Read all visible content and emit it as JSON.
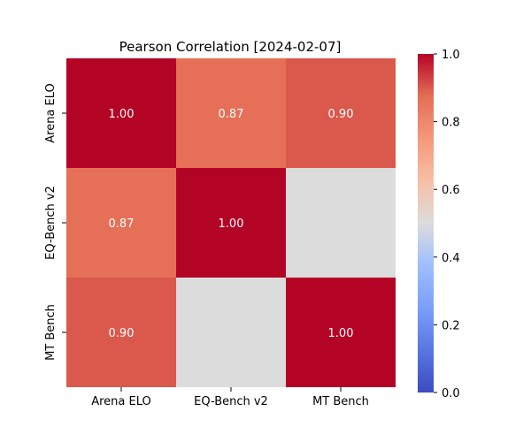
{
  "chart_data": {
    "type": "heatmap",
    "title": "Pearson Correlation [2024-02-07]",
    "xlabel": "",
    "ylabel": "",
    "x_categories": [
      "Arena ELO",
      "EQ-Bench v2",
      "MT Bench"
    ],
    "y_categories": [
      "Arena ELO",
      "EQ-Bench v2",
      "MT Bench"
    ],
    "values": [
      [
        1.0,
        0.87,
        0.9
      ],
      [
        0.87,
        1.0,
        0.5
      ],
      [
        0.9,
        0.5,
        1.0
      ]
    ],
    "annotations": [
      [
        "1.00",
        "0.87",
        "0.90"
      ],
      [
        "0.87",
        "1.00",
        ""
      ],
      [
        "0.90",
        "",
        "1.00"
      ]
    ],
    "colormap": "coolwarm",
    "vmin": 0.0,
    "vmax": 1.0,
    "colorbar_ticks": [
      "0.0",
      "0.2",
      "0.4",
      "0.6",
      "0.8",
      "1.0"
    ],
    "colorbar_values": [
      0.0,
      0.2,
      0.4,
      0.6,
      0.8,
      1.0
    ],
    "grid": false,
    "legend": "colorbar-right"
  }
}
